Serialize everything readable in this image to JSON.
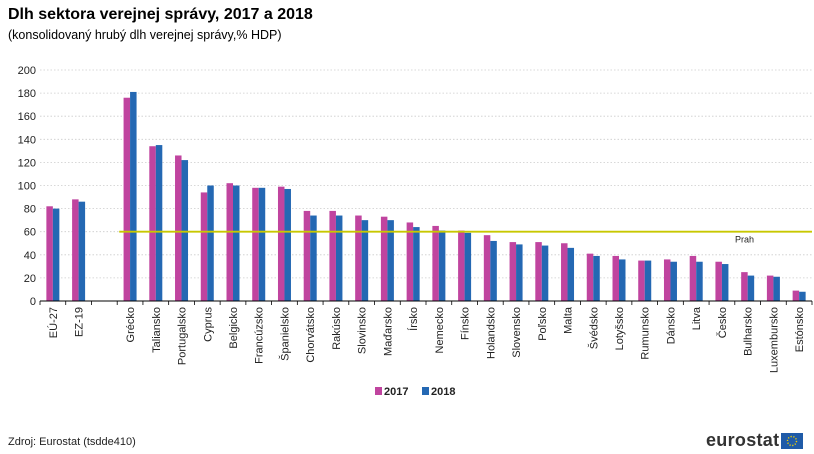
{
  "header": {
    "title": "Dlh sektora verejnej správy, 2017 a 2018",
    "subtitle": "(konsolidovaný hrubý dlh verejnej správy,% HDP)"
  },
  "footer": {
    "source": "Zdroj: Eurostat (tsdde410)",
    "logo_text": "eurostat"
  },
  "colors": {
    "series_2017": "#c0449f",
    "series_2018": "#2468b3",
    "threshold": "#c8c800",
    "grid": "#cccccc",
    "logo_flag": "#1f5ba8"
  },
  "chart_data": {
    "type": "bar",
    "categories": [
      "EÚ-27",
      "EZ-19",
      "",
      "Grécko",
      "Taliansko",
      "Portugalsko",
      "Cyprus",
      "Belgicko",
      "Francúzsko",
      "Španielsko",
      "Chorvátsko",
      "Rakúsko",
      "Slovinsko",
      "Maďarsko",
      "Írsko",
      "Nemecko",
      "Fínsko",
      "Holandsko",
      "Slovensko",
      "Poľsko",
      "Malta",
      "Švédsko",
      "Lotyšsko",
      "Rumunsko",
      "Dánsko",
      "Litva",
      "Česko",
      "Bulharsko",
      "Luxembursko",
      "Estónsko"
    ],
    "series": [
      {
        "name": "2017",
        "values": [
          82,
          88,
          null,
          176,
          134,
          126,
          94,
          102,
          98,
          99,
          78,
          78,
          74,
          73,
          68,
          65,
          61,
          57,
          51,
          51,
          50,
          41,
          39,
          35,
          36,
          39,
          34,
          25,
          22,
          9
        ]
      },
      {
        "name": "2018",
        "values": [
          80,
          86,
          null,
          181,
          135,
          122,
          100,
          100,
          98,
          97,
          74,
          74,
          70,
          70,
          64,
          61,
          59,
          52,
          49,
          48,
          46,
          39,
          36,
          35,
          34,
          34,
          32,
          22,
          21,
          8
        ]
      }
    ],
    "threshold": {
      "value": 60,
      "label": "Prah"
    },
    "ylim": [
      0,
      200
    ],
    "yticks": [
      0,
      20,
      40,
      60,
      80,
      100,
      120,
      140,
      160,
      180,
      200
    ],
    "grid": true,
    "legend_position": "bottom-center",
    "xlabel": "",
    "ylabel": ""
  }
}
